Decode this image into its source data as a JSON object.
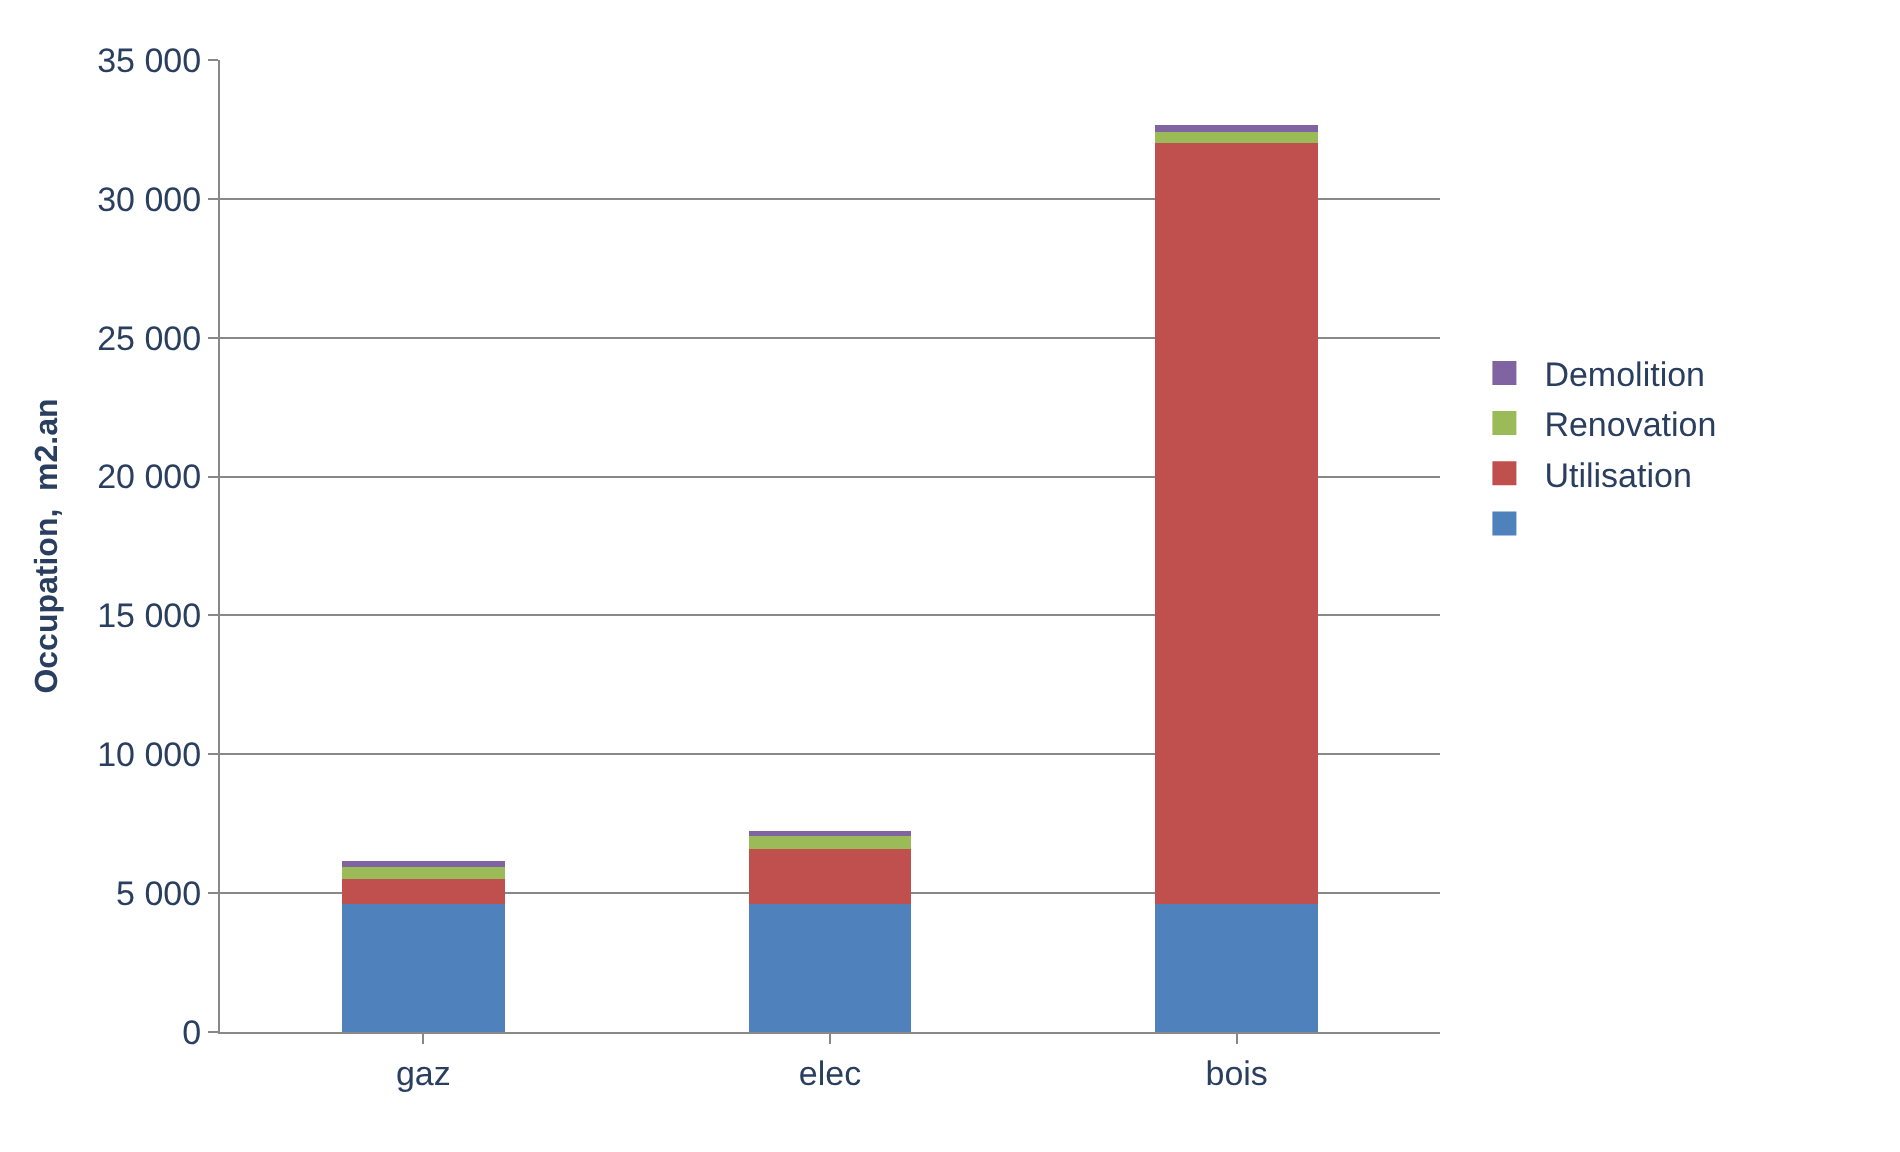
{
  "chart_data": {
    "type": "bar",
    "stacked": true,
    "ylabel": "Occupation,  m2.an",
    "categories": [
      "gaz",
      "elec",
      "bois"
    ],
    "series": [
      {
        "name": null,
        "color": "#4f81bd",
        "values": [
          4600,
          4600,
          4600
        ]
      },
      {
        "name": "Utilisation",
        "color": "#c0504d",
        "values": [
          900,
          2000,
          27400
        ]
      },
      {
        "name": "Renovation",
        "color": "#9bbb59",
        "values": [
          450,
          450,
          400
        ]
      },
      {
        "name": "Demolition",
        "color": "#8064a2",
        "values": [
          200,
          200,
          250
        ]
      }
    ],
    "ylim": [
      0,
      35000
    ],
    "yticks": [
      0,
      {
        "value": 5000,
        "label": "5 000"
      },
      {
        "value": 10000,
        "label": "10 000"
      },
      {
        "value": 15000,
        "label": "15 000"
      },
      {
        "value": 20000,
        "label": "20 000"
      },
      {
        "value": 25000,
        "label": "25 000"
      },
      {
        "value": 30000,
        "label": "30 000"
      },
      {
        "value": 35000,
        "label": "35 000"
      }
    ],
    "grid": "y",
    "legend": "right"
  }
}
